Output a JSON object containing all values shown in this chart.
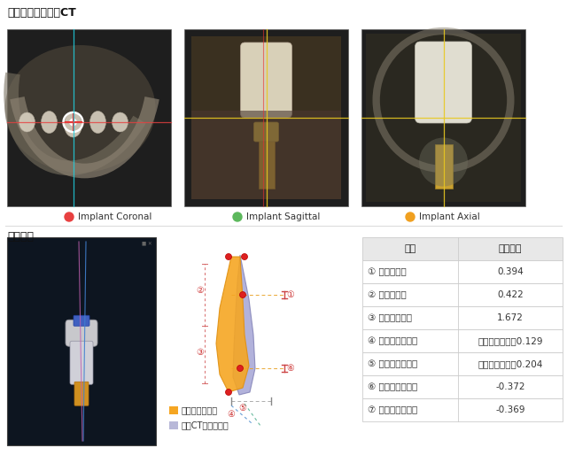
{
  "title_top": "术前方案对比术后CT",
  "title_bottom": "精度误差",
  "legend_items": [
    {
      "color": "#e84040",
      "label": "Implant Coronal"
    },
    {
      "color": "#5cb85c",
      "label": "Implant Sagittal"
    },
    {
      "color": "#f0a020",
      "label": "Implant Axial"
    }
  ],
  "legend2_items": [
    {
      "color": "#f5a623",
      "label": "术前计划种植体"
    },
    {
      "color": "#b8b8d8",
      "label": "术后CT实际种植体"
    }
  ],
  "table_headers": [
    "序号",
    "误差信息"
  ],
  "table_rows": [
    [
      "① 植入点误差",
      "0.394"
    ],
    [
      "② 末端点误差",
      "0.422"
    ],
    [
      "③ 植体角度误差",
      "1.672"
    ],
    [
      "④ 植入点水平误差",
      "偏舌侧，近中：0.129"
    ],
    [
      "⑤ 末端点水平误差",
      "偏颊侧，近中：0.204"
    ],
    [
      "⑥ 植入点深度误差",
      "-0.372"
    ],
    [
      "⑦ 末端点深度误差",
      "-0.369"
    ]
  ],
  "bg_color": "#ffffff",
  "table_header_bg": "#e8e8e8",
  "table_row_bg": "#ffffff",
  "table_border_color": "#cccccc",
  "title_fontsize": 9,
  "body_fontsize": 7.5,
  "header_fontsize": 8.5,
  "ct_panel_color": "#1a1a1a",
  "ct_border_color": "#888888"
}
